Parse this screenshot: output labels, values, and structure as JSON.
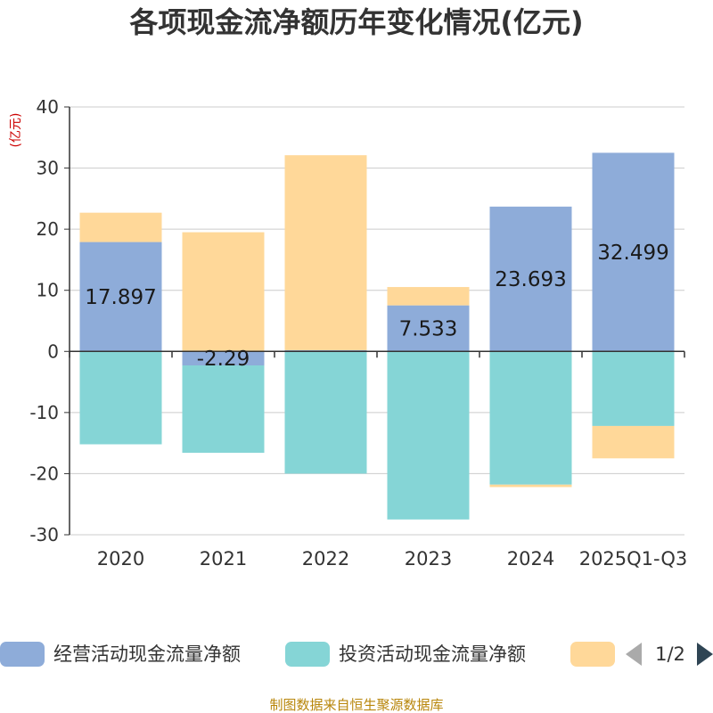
{
  "chart_data": {
    "type": "bar",
    "stacked": true,
    "title": "各项现金流净额历年变化情况(亿元)",
    "ylabel": "(亿元)",
    "categories": [
      "2020",
      "2021",
      "2022",
      "2023",
      "2024",
      "2025Q1-Q3"
    ],
    "ylim": [
      -30,
      40
    ],
    "yticks": [
      40,
      30,
      20,
      10,
      0,
      -10,
      -20,
      -30
    ],
    "series": [
      {
        "name": "经营活动现金流量净额",
        "color": "#8eacd9",
        "values": [
          17.897,
          -2.29,
          0.2,
          7.533,
          23.693,
          32.499
        ]
      },
      {
        "name": "投资活动现金流量净额",
        "color": "#85d5d6",
        "values": [
          -15.2,
          -14.3,
          -20.0,
          -27.5,
          -21.8,
          -12.2
        ]
      },
      {
        "name": "",
        "color": "#ffd899",
        "values": [
          4.8,
          19.5,
          31.9,
          3.0,
          -0.4,
          -5.3
        ]
      }
    ],
    "data_labels": [
      "17.897",
      "-2.29",
      "",
      "7.533",
      "23.693",
      "32.499"
    ],
    "legend": {
      "position": "bottom",
      "page": "1/2"
    },
    "source": "制图数据来自恒生聚源数据库"
  }
}
